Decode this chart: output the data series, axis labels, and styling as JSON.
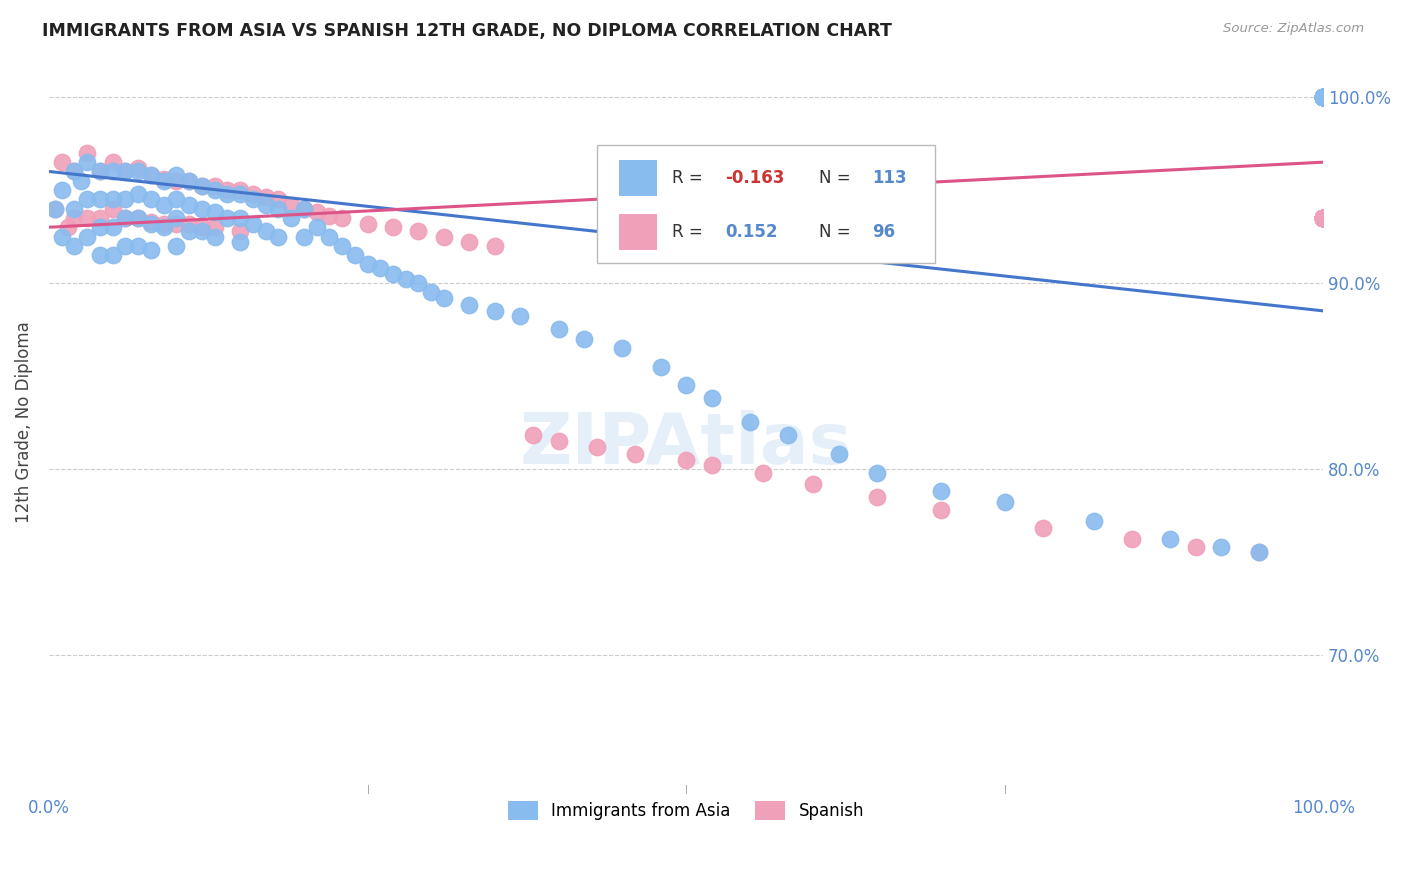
{
  "title": "IMMIGRANTS FROM ASIA VS SPANISH 12TH GRADE, NO DIPLOMA CORRELATION CHART",
  "source": "Source: ZipAtlas.com",
  "ylabel": "12th Grade, No Diploma",
  "xlim": [
    0.0,
    1.0
  ],
  "ylim": [
    0.625,
    1.025
  ],
  "blue_color": "#88BBEE",
  "pink_color": "#F0A0B8",
  "blue_line_color": "#4477CC",
  "pink_line_color": "#DD5588",
  "blue_line_y0": 0.96,
  "blue_line_y1": 0.885,
  "pink_line_y0": 0.93,
  "pink_line_y1": 0.965,
  "yticks": [
    0.7,
    0.8,
    0.9,
    1.0
  ],
  "ytick_labels": [
    "70.0%",
    "80.0%",
    "90.0%",
    "100.0%"
  ],
  "xtick_left": "0.0%",
  "xtick_mid": "",
  "xtick_right": "100.0%",
  "legend_r1": "-0.163",
  "legend_n1": "113",
  "legend_r2": "0.152",
  "legend_n2": "96",
  "watermark": "ZIPAtlas",
  "asia_x": [
    0.005,
    0.01,
    0.01,
    0.02,
    0.02,
    0.02,
    0.025,
    0.03,
    0.03,
    0.03,
    0.04,
    0.04,
    0.04,
    0.04,
    0.05,
    0.05,
    0.05,
    0.05,
    0.06,
    0.06,
    0.06,
    0.06,
    0.07,
    0.07,
    0.07,
    0.07,
    0.08,
    0.08,
    0.08,
    0.08,
    0.09,
    0.09,
    0.09,
    0.1,
    0.1,
    0.1,
    0.1,
    0.11,
    0.11,
    0.11,
    0.12,
    0.12,
    0.12,
    0.13,
    0.13,
    0.13,
    0.14,
    0.14,
    0.15,
    0.15,
    0.15,
    0.16,
    0.16,
    0.17,
    0.17,
    0.18,
    0.18,
    0.19,
    0.2,
    0.2,
    0.21,
    0.22,
    0.23,
    0.24,
    0.25,
    0.26,
    0.27,
    0.28,
    0.29,
    0.3,
    0.31,
    0.33,
    0.35,
    0.37,
    0.4,
    0.42,
    0.45,
    0.48,
    0.5,
    0.52,
    0.55,
    0.58,
    0.62,
    0.65,
    0.7,
    0.75,
    0.82,
    0.88,
    0.92,
    0.95,
    1.0,
    1.0,
    1.0,
    1.0,
    1.0,
    1.0,
    1.0,
    1.0,
    1.0,
    1.0,
    1.0,
    1.0,
    1.0,
    1.0,
    1.0,
    1.0,
    1.0,
    1.0,
    1.0,
    1.0,
    1.0,
    1.0,
    1.0
  ],
  "asia_y": [
    0.94,
    0.95,
    0.925,
    0.96,
    0.94,
    0.92,
    0.955,
    0.965,
    0.945,
    0.925,
    0.96,
    0.945,
    0.93,
    0.915,
    0.96,
    0.945,
    0.93,
    0.915,
    0.96,
    0.945,
    0.935,
    0.92,
    0.96,
    0.948,
    0.935,
    0.92,
    0.958,
    0.945,
    0.932,
    0.918,
    0.955,
    0.942,
    0.93,
    0.958,
    0.945,
    0.935,
    0.92,
    0.955,
    0.942,
    0.928,
    0.952,
    0.94,
    0.928,
    0.95,
    0.938,
    0.925,
    0.948,
    0.935,
    0.948,
    0.935,
    0.922,
    0.945,
    0.932,
    0.942,
    0.928,
    0.94,
    0.925,
    0.935,
    0.94,
    0.925,
    0.93,
    0.925,
    0.92,
    0.915,
    0.91,
    0.908,
    0.905,
    0.902,
    0.9,
    0.895,
    0.892,
    0.888,
    0.885,
    0.882,
    0.875,
    0.87,
    0.865,
    0.855,
    0.845,
    0.838,
    0.825,
    0.818,
    0.808,
    0.798,
    0.788,
    0.782,
    0.772,
    0.762,
    0.758,
    0.755,
    1.0,
    1.0,
    1.0,
    1.0,
    1.0,
    1.0,
    1.0,
    1.0,
    1.0,
    1.0,
    1.0,
    1.0,
    1.0,
    1.0,
    1.0,
    1.0,
    1.0,
    1.0,
    1.0,
    1.0,
    1.0,
    1.0,
    1.0
  ],
  "spanish_x": [
    0.005,
    0.01,
    0.015,
    0.02,
    0.02,
    0.03,
    0.03,
    0.04,
    0.04,
    0.05,
    0.05,
    0.06,
    0.06,
    0.07,
    0.07,
    0.08,
    0.08,
    0.09,
    0.09,
    0.1,
    0.1,
    0.11,
    0.11,
    0.12,
    0.12,
    0.13,
    0.13,
    0.14,
    0.15,
    0.15,
    0.16,
    0.17,
    0.18,
    0.19,
    0.2,
    0.21,
    0.22,
    0.23,
    0.25,
    0.27,
    0.29,
    0.31,
    0.33,
    0.35,
    0.38,
    0.4,
    0.43,
    0.46,
    0.5,
    0.52,
    0.56,
    0.6,
    0.65,
    0.7,
    0.78,
    0.85,
    0.9,
    0.95,
    1.0,
    1.0,
    1.0,
    1.0,
    1.0,
    1.0,
    1.0,
    1.0,
    1.0,
    1.0,
    1.0,
    1.0,
    1.0,
    1.0,
    1.0,
    1.0,
    1.0,
    1.0,
    1.0,
    1.0,
    1.0,
    1.0,
    1.0,
    1.0,
    1.0,
    1.0,
    1.0,
    1.0,
    1.0,
    1.0,
    1.0,
    1.0,
    1.0,
    1.0,
    1.0,
    1.0,
    1.0,
    1.0
  ],
  "spanish_y": [
    0.94,
    0.965,
    0.93,
    0.96,
    0.935,
    0.97,
    0.935,
    0.96,
    0.935,
    0.965,
    0.94,
    0.96,
    0.935,
    0.962,
    0.935,
    0.958,
    0.933,
    0.956,
    0.932,
    0.955,
    0.932,
    0.955,
    0.932,
    0.952,
    0.93,
    0.952,
    0.93,
    0.95,
    0.95,
    0.928,
    0.948,
    0.946,
    0.945,
    0.942,
    0.94,
    0.938,
    0.936,
    0.935,
    0.932,
    0.93,
    0.928,
    0.925,
    0.922,
    0.92,
    0.818,
    0.815,
    0.812,
    0.808,
    0.805,
    0.802,
    0.798,
    0.792,
    0.785,
    0.778,
    0.768,
    0.762,
    0.758,
    0.755,
    0.935,
    0.935,
    0.935,
    0.935,
    0.935,
    0.935,
    0.935,
    0.935,
    0.935,
    0.935,
    0.935,
    0.935,
    0.935,
    0.935,
    0.935,
    0.935,
    0.935,
    0.935,
    0.935,
    0.935,
    0.935,
    0.935,
    0.935,
    0.935,
    0.935,
    0.935,
    0.935,
    0.935,
    0.935,
    0.935,
    0.935,
    0.935,
    0.935,
    0.935,
    0.935,
    0.935,
    0.935,
    0.935
  ]
}
